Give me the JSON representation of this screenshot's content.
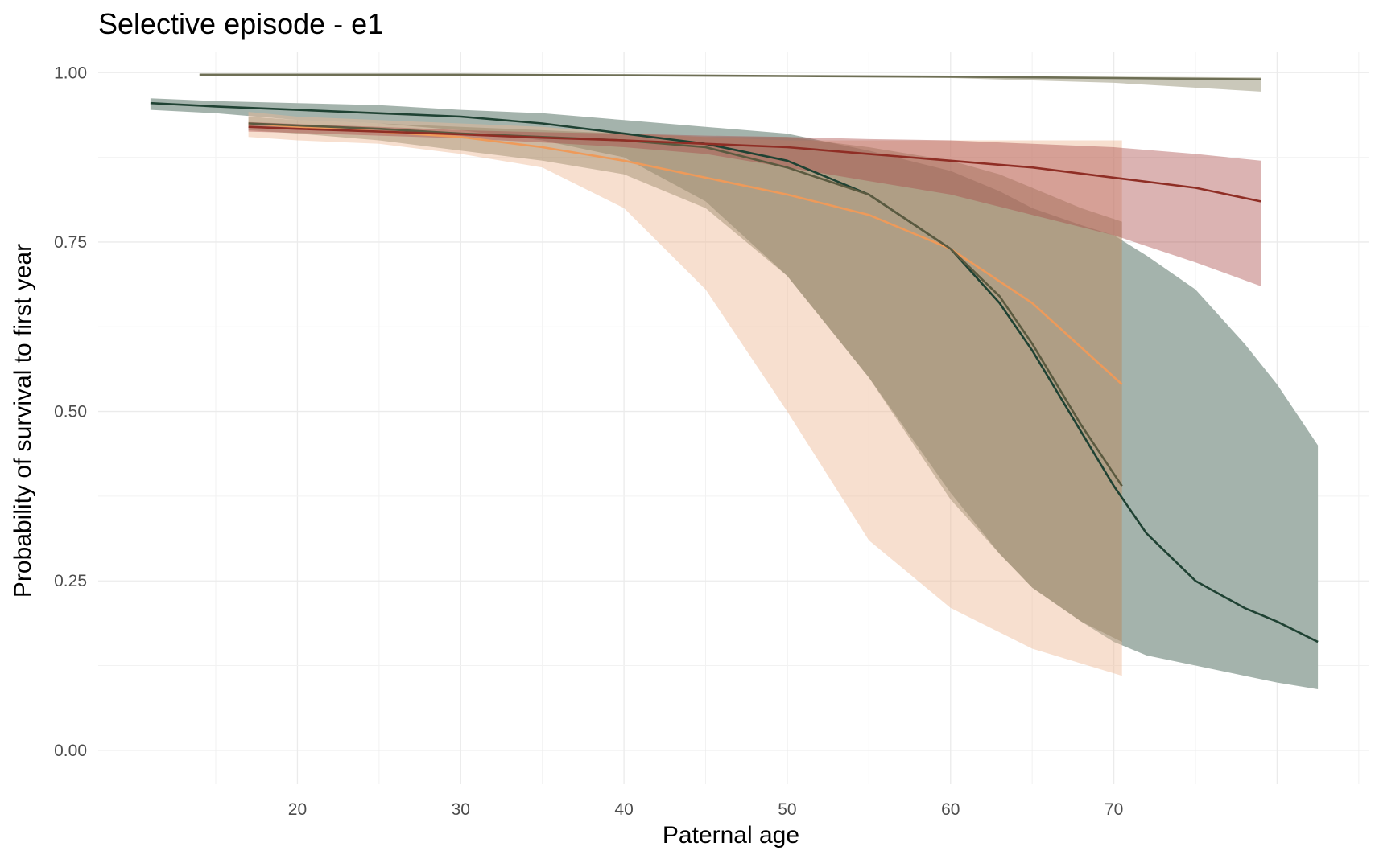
{
  "chart_data": {
    "type": "line",
    "title": "Selective episode - e1",
    "xlabel": "Paternal age",
    "ylabel": "Probability of survival to first year",
    "xlim": [
      7.8,
      85.6
    ],
    "ylim": [
      -0.05,
      1.03
    ],
    "x_ticks": [
      20,
      30,
      40,
      50,
      60,
      70
    ],
    "x_tick_labels": [
      "20",
      "30",
      "40",
      "50",
      "60",
      "70"
    ],
    "y_ticks": [
      0.0,
      0.25,
      0.5,
      0.75,
      1.0
    ],
    "y_tick_labels": [
      "0.00",
      "0.25",
      "0.50",
      "0.75",
      "1.00"
    ],
    "grid": true,
    "legend": "none",
    "series": [
      {
        "color": "#1f4233",
        "fill": "#a4b3ac",
        "fill_opacity": 1,
        "x": [
          11.0,
          15,
          20,
          25,
          30,
          35,
          40,
          45,
          50,
          55,
          60,
          63,
          65,
          68,
          70,
          72,
          75,
          78,
          80,
          82.5
        ],
        "y": [
          0.955,
          0.95,
          0.945,
          0.94,
          0.935,
          0.925,
          0.91,
          0.895,
          0.87,
          0.82,
          0.74,
          0.66,
          0.59,
          0.47,
          0.39,
          0.32,
          0.25,
          0.21,
          0.19,
          0.16
        ],
        "lower": [
          0.945,
          0.94,
          0.93,
          0.925,
          0.915,
          0.9,
          0.875,
          0.81,
          0.7,
          0.55,
          0.38,
          0.29,
          0.24,
          0.19,
          0.16,
          0.14,
          0.125,
          0.11,
          0.1,
          0.09
        ],
        "upper": [
          0.962,
          0.958,
          0.955,
          0.952,
          0.945,
          0.94,
          0.93,
          0.92,
          0.91,
          0.885,
          0.855,
          0.825,
          0.8,
          0.775,
          0.76,
          0.73,
          0.68,
          0.6,
          0.54,
          0.45
        ]
      },
      {
        "color": "#ee9a5a",
        "fill": "#eeb994",
        "fill_opacity": 0.45,
        "x": [
          17.0,
          20,
          25,
          30,
          35,
          40,
          45,
          50,
          55,
          60,
          65,
          70.5
        ],
        "y": [
          0.925,
          0.92,
          0.913,
          0.905,
          0.89,
          0.87,
          0.845,
          0.82,
          0.79,
          0.74,
          0.66,
          0.54
        ],
        "lower": [
          0.905,
          0.9,
          0.895,
          0.88,
          0.86,
          0.8,
          0.68,
          0.5,
          0.31,
          0.21,
          0.15,
          0.11
        ],
        "upper": [
          0.942,
          0.935,
          0.93,
          0.925,
          0.92,
          0.91,
          0.905,
          0.9,
          0.9,
          0.9,
          0.9,
          0.9
        ]
      },
      {
        "color": "#5b5a40",
        "fill": "#8e7d5c",
        "fill_opacity": 0.4,
        "x": [
          17.0,
          20,
          25,
          30,
          35,
          40,
          45,
          50,
          55,
          60,
          63,
          65,
          68,
          70.5
        ],
        "y": [
          0.925,
          0.922,
          0.917,
          0.91,
          0.905,
          0.9,
          0.89,
          0.86,
          0.82,
          0.74,
          0.67,
          0.6,
          0.48,
          0.39
        ],
        "lower": [
          0.915,
          0.91,
          0.9,
          0.885,
          0.87,
          0.85,
          0.8,
          0.7,
          0.55,
          0.37,
          0.29,
          0.24,
          0.19,
          0.16
        ],
        "upper": [
          0.935,
          0.93,
          0.925,
          0.92,
          0.915,
          0.91,
          0.905,
          0.905,
          0.89,
          0.87,
          0.85,
          0.83,
          0.8,
          0.78
        ]
      },
      {
        "color": "#8f2e25",
        "fill": "#a94a48",
        "fill_opacity": 0.42,
        "x": [
          17.0,
          20,
          25,
          30,
          35,
          40,
          45,
          50,
          55,
          60,
          65,
          70,
          75,
          79
        ],
        "y": [
          0.92,
          0.917,
          0.913,
          0.909,
          0.904,
          0.9,
          0.895,
          0.89,
          0.88,
          0.87,
          0.86,
          0.845,
          0.83,
          0.81
        ],
        "lower": [
          0.913,
          0.911,
          0.907,
          0.903,
          0.897,
          0.89,
          0.88,
          0.86,
          0.84,
          0.82,
          0.79,
          0.76,
          0.72,
          0.685
        ],
        "upper": [
          0.927,
          0.924,
          0.92,
          0.915,
          0.912,
          0.91,
          0.907,
          0.905,
          0.902,
          0.9,
          0.895,
          0.89,
          0.88,
          0.87
        ]
      },
      {
        "color": "#6e6f55",
        "fill": "#bdbaa9",
        "fill_opacity": 0.8,
        "x": [
          14.0,
          20,
          30,
          40,
          50,
          60,
          70,
          79
        ],
        "y": [
          0.997,
          0.997,
          0.997,
          0.996,
          0.995,
          0.994,
          0.992,
          0.99
        ],
        "lower": [
          0.996,
          0.996,
          0.996,
          0.995,
          0.994,
          0.992,
          0.985,
          0.972
        ],
        "upper": [
          0.998,
          0.998,
          0.998,
          0.997,
          0.996,
          0.995,
          0.994,
          0.993
        ]
      }
    ]
  }
}
